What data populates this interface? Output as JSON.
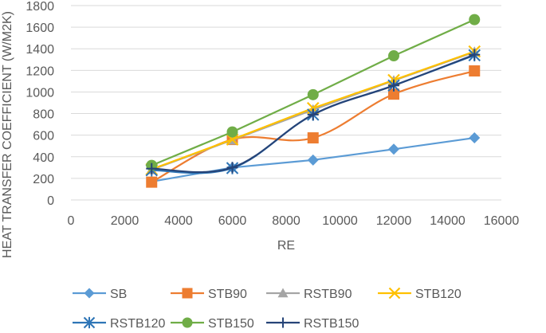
{
  "chart_data": {
    "type": "line",
    "title": "",
    "xlabel": "RE",
    "ylabel": "HEAT TRANSFER COEFFICIENT (W/M2K)",
    "xlim": [
      0,
      16000
    ],
    "ylim": [
      0,
      1800
    ],
    "xticks": [
      "0",
      "2000",
      "4000",
      "6000",
      "8000",
      "10000",
      "12000",
      "14000",
      "16000"
    ],
    "yticks": [
      "0",
      "200",
      "400",
      "600",
      "800",
      "1000",
      "1200",
      "1400",
      "1600",
      "1800"
    ],
    "legend_position": "bottom",
    "series": [
      {
        "name": "SB",
        "color": "#5B9BD5",
        "marker": "diamond",
        "smooth": false,
        "x": [
          3000,
          6000,
          9000,
          12000,
          15000
        ],
        "y": [
          170,
          300,
          370,
          470,
          575
        ]
      },
      {
        "name": "STB90",
        "color": "#ED7D31",
        "marker": "square",
        "smooth": true,
        "x": [
          3000,
          6000,
          9000,
          12000,
          15000
        ],
        "y": [
          165,
          560,
          575,
          980,
          1195
        ]
      },
      {
        "name": "RSTB90",
        "color": "#A5A5A5",
        "marker": "triangle",
        "smooth": false,
        "x": [
          3000,
          6000,
          9000,
          12000,
          15000
        ],
        "y": [
          280,
          555,
          835,
          1105,
          1370
        ]
      },
      {
        "name": "STB120",
        "color": "#FFC000",
        "marker": "x",
        "smooth": false,
        "x": [
          3000,
          6000,
          9000,
          12000,
          15000
        ],
        "y": [
          285,
          560,
          850,
          1110,
          1375
        ]
      },
      {
        "name": "RSTB120",
        "color": "#2E75B6",
        "marker": "asterisk",
        "smooth": true,
        "x": [
          3000,
          6000,
          9000,
          12000,
          15000
        ],
        "y": [
          275,
          295,
          790,
          1060,
          1340
        ]
      },
      {
        "name": "STB150",
        "color": "#70AD47",
        "marker": "circle",
        "smooth": false,
        "x": [
          3000,
          6000,
          9000,
          12000,
          15000
        ],
        "y": [
          320,
          630,
          975,
          1335,
          1670
        ]
      },
      {
        "name": "RSTB150",
        "color": "#264478",
        "marker": "plus",
        "smooth": true,
        "x": [
          3000,
          6000,
          9000,
          12000,
          15000
        ],
        "y": [
          290,
          300,
          790,
          1060,
          1345
        ]
      }
    ]
  }
}
